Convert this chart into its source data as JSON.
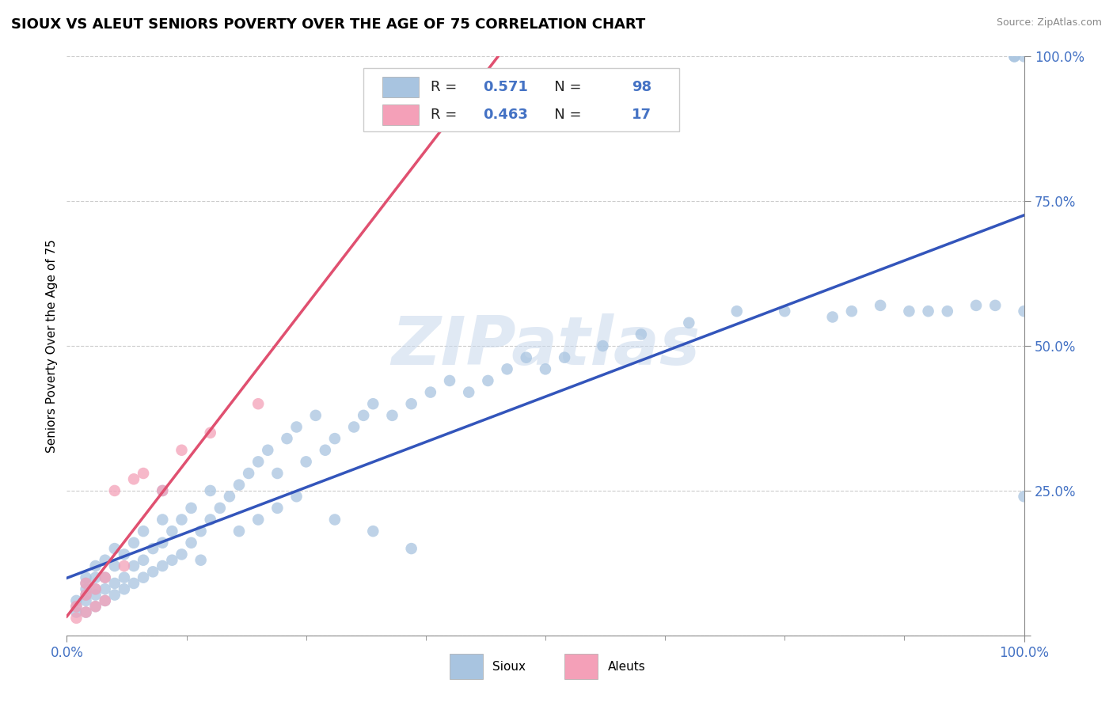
{
  "title": "SIOUX VS ALEUT SENIORS POVERTY OVER THE AGE OF 75 CORRELATION CHART",
  "source": "Source: ZipAtlas.com",
  "ylabel": "Seniors Poverty Over the Age of 75",
  "xlim": [
    0,
    1
  ],
  "ylim": [
    0,
    1
  ],
  "sioux_R": 0.571,
  "sioux_N": 98,
  "aleut_R": 0.463,
  "aleut_N": 17,
  "sioux_color": "#a8c4e0",
  "aleut_color": "#f4a0b8",
  "sioux_line_color": "#3355bb",
  "aleut_line_color": "#e05070",
  "watermark": "ZIPatlas",
  "title_fontsize": 13,
  "source_fontsize": 9,
  "ytick_positions": [
    0.0,
    0.25,
    0.5,
    0.75,
    1.0
  ],
  "ytick_labels": [
    "",
    "25.0%",
    "50.0%",
    "75.0%",
    "100.0%"
  ],
  "xtick_positions": [
    0.0,
    1.0
  ],
  "xtick_labels": [
    "0.0%",
    "100.0%"
  ],
  "tick_color": "#4472c4",
  "sioux_x": [
    0.01,
    0.01,
    0.01,
    0.02,
    0.02,
    0.02,
    0.02,
    0.02,
    0.02,
    0.03,
    0.03,
    0.03,
    0.03,
    0.03,
    0.04,
    0.04,
    0.04,
    0.04,
    0.05,
    0.05,
    0.05,
    0.05,
    0.06,
    0.06,
    0.06,
    0.07,
    0.07,
    0.07,
    0.08,
    0.08,
    0.08,
    0.09,
    0.09,
    0.1,
    0.1,
    0.1,
    0.11,
    0.11,
    0.12,
    0.12,
    0.13,
    0.13,
    0.14,
    0.15,
    0.15,
    0.16,
    0.17,
    0.18,
    0.19,
    0.2,
    0.21,
    0.22,
    0.23,
    0.24,
    0.25,
    0.26,
    0.27,
    0.28,
    0.3,
    0.31,
    0.32,
    0.34,
    0.36,
    0.38,
    0.4,
    0.42,
    0.44,
    0.46,
    0.48,
    0.5,
    0.52,
    0.56,
    0.6,
    0.65,
    0.7,
    0.75,
    0.8,
    0.82,
    0.85,
    0.88,
    0.9,
    0.92,
    0.95,
    0.97,
    0.99,
    0.99,
    1.0,
    1.0,
    1.0,
    0.2,
    0.18,
    0.22,
    0.14,
    0.1,
    0.24,
    0.28,
    0.32,
    0.36
  ],
  "sioux_y": [
    0.04,
    0.05,
    0.06,
    0.04,
    0.06,
    0.07,
    0.08,
    0.09,
    0.1,
    0.05,
    0.07,
    0.08,
    0.1,
    0.12,
    0.06,
    0.08,
    0.1,
    0.13,
    0.07,
    0.09,
    0.12,
    0.15,
    0.08,
    0.1,
    0.14,
    0.09,
    0.12,
    0.16,
    0.1,
    0.13,
    0.18,
    0.11,
    0.15,
    0.12,
    0.16,
    0.2,
    0.13,
    0.18,
    0.14,
    0.2,
    0.16,
    0.22,
    0.18,
    0.2,
    0.25,
    0.22,
    0.24,
    0.26,
    0.28,
    0.3,
    0.32,
    0.28,
    0.34,
    0.36,
    0.3,
    0.38,
    0.32,
    0.34,
    0.36,
    0.38,
    0.4,
    0.38,
    0.4,
    0.42,
    0.44,
    0.42,
    0.44,
    0.46,
    0.48,
    0.46,
    0.48,
    0.5,
    0.52,
    0.54,
    0.56,
    0.56,
    0.55,
    0.56,
    0.57,
    0.56,
    0.56,
    0.56,
    0.57,
    0.57,
    1.0,
    1.0,
    1.0,
    0.56,
    0.24,
    0.2,
    0.18,
    0.22,
    0.13,
    0.25,
    0.24,
    0.2,
    0.18,
    0.15
  ],
  "aleut_x": [
    0.01,
    0.01,
    0.02,
    0.02,
    0.02,
    0.03,
    0.03,
    0.04,
    0.04,
    0.05,
    0.06,
    0.07,
    0.08,
    0.1,
    0.12,
    0.15,
    0.2
  ],
  "aleut_y": [
    0.03,
    0.05,
    0.04,
    0.07,
    0.09,
    0.05,
    0.08,
    0.06,
    0.1,
    0.25,
    0.12,
    0.27,
    0.28,
    0.25,
    0.32,
    0.35,
    0.4
  ]
}
